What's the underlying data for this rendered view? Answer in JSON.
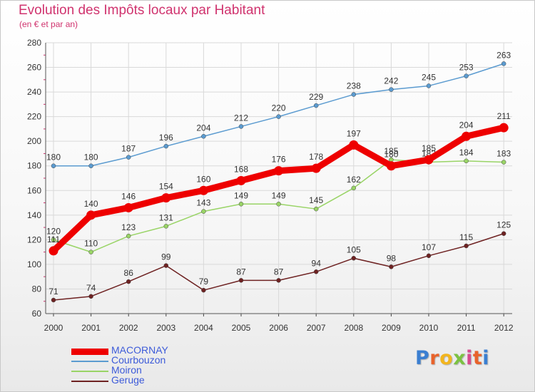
{
  "header": {
    "title": "Evolution des Impôts locaux par Habitant",
    "subtitle": "(en € et par an)"
  },
  "logo": {
    "text": "Proxiti",
    "letter_colors": [
      "#3b7fd1",
      "#e8632b",
      "#f2b51e",
      "#7cc242",
      "#d84b8d",
      "#e8632b",
      "#3b7fd1"
    ]
  },
  "chart_data": {
    "type": "line",
    "title": "Evolution des Impôts locaux par Habitant",
    "subtitle": "(en € et par an)",
    "xlabel": "",
    "ylabel": "",
    "ylim": [
      60,
      280
    ],
    "ytick_step": 20,
    "grid": true,
    "categories": [
      "2000",
      "2001",
      "2002",
      "2003",
      "2004",
      "2005",
      "2006",
      "2007",
      "2008",
      "2009",
      "2010",
      "2011",
      "2012"
    ],
    "series": [
      {
        "name": "Courbouzon",
        "color": "#5b9bd0",
        "emphasis": false,
        "values": [
          180,
          180,
          187,
          196,
          204,
          212,
          220,
          229,
          238,
          242,
          245,
          253,
          263
        ]
      },
      {
        "name": "Moiron",
        "color": "#99d466",
        "emphasis": false,
        "values": [
          120,
          110,
          123,
          131,
          143,
          149,
          149,
          145,
          162,
          185,
          183,
          184,
          183
        ]
      },
      {
        "name": "Geruge",
        "color": "#6e2222",
        "emphasis": false,
        "values": [
          71,
          74,
          86,
          99,
          79,
          87,
          87,
          94,
          105,
          98,
          107,
          115,
          125
        ]
      },
      {
        "name": "MACORNAY",
        "color": "#ee0000",
        "emphasis": true,
        "values": [
          111,
          140,
          146,
          154,
          160,
          168,
          176,
          178,
          197,
          180,
          185,
          204,
          211
        ]
      }
    ],
    "legend": [
      "MACORNAY",
      "Courbouzon",
      "Moiron",
      "Geruge"
    ]
  }
}
